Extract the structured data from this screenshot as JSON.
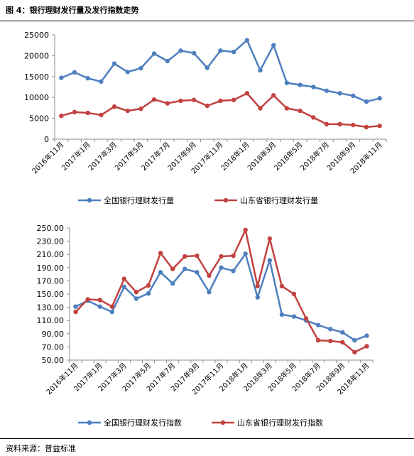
{
  "figure_title": "图 4：银行理财发行量及发行指数走势",
  "source": "资料来源：普益标准",
  "colors": {
    "national": "#4e7fbf",
    "shandong": "#c1423f",
    "axis": "#8c8c8c"
  },
  "chart_data": [
    {
      "type": "line",
      "categories": [
        "2016年11月",
        "2016年12月",
        "2017年1月",
        "2017年2月",
        "2017年3月",
        "2017年4月",
        "2017年5月",
        "2017年6月",
        "2017年7月",
        "2017年8月",
        "2017年9月",
        "2017年10月",
        "2017年11月",
        "2017年12月",
        "2018年1月",
        "2018年2月",
        "2018年3月",
        "2018年4月",
        "2018年5月",
        "2018年6月",
        "2018年7月",
        "2018年8月",
        "2018年9月",
        "2018年10月",
        "2018年11月"
      ],
      "tick_labels": [
        "2016年11月",
        "2017年1月",
        "2017年3月",
        "2017年5月",
        "2017年7月",
        "2017年9月",
        "2017年11月",
        "2018年1月",
        "2018年3月",
        "2018年5月",
        "2018年7月",
        "2018年9月",
        "2018年11月"
      ],
      "y_ticks": [
        "0",
        "5000",
        "10000",
        "15000",
        "20000",
        "25000"
      ],
      "ylim": [
        0,
        25000
      ],
      "series": [
        {
          "name": "全国银行理财发行量",
          "values": [
            14700,
            16000,
            14600,
            13800,
            18100,
            16100,
            17000,
            20500,
            18700,
            21200,
            20600,
            17100,
            21200,
            20900,
            23700,
            16500,
            22500,
            13500,
            13000,
            12500,
            11600,
            11000,
            10400,
            9000,
            9800
          ]
        },
        {
          "name": "山东省银行理财发行量",
          "values": [
            5600,
            6500,
            6300,
            5800,
            7800,
            6800,
            7300,
            9500,
            8600,
            9200,
            9400,
            8000,
            9200,
            9400,
            11000,
            7400,
            10500,
            7400,
            6800,
            5200,
            3600,
            3600,
            3400,
            2900,
            3200
          ]
        }
      ]
    },
    {
      "type": "line",
      "categories": [
        "2016年11月",
        "2016年12月",
        "2017年1月",
        "2017年2月",
        "2017年3月",
        "2017年4月",
        "2017年5月",
        "2017年6月",
        "2017年7月",
        "2017年8月",
        "2017年9月",
        "2017年10月",
        "2017年11月",
        "2017年12月",
        "2018年1月",
        "2018年2月",
        "2018年3月",
        "2018年4月",
        "2018年5月",
        "2018年6月",
        "2018年7月",
        "2018年8月",
        "2018年9月",
        "2018年10月",
        "2018年11月"
      ],
      "tick_labels": [
        "2016年11月",
        "2017年1月",
        "2017年3月",
        "2017年5月",
        "2017年7月",
        "2017年9月",
        "2017年11月",
        "2018年1月",
        "2018年3月",
        "2018年5月",
        "2018年7月",
        "2018年9月",
        "2018年11月"
      ],
      "y_ticks": [
        "50.00",
        "70.00",
        "90.00",
        "110.00",
        "130.00",
        "150.00",
        "170.00",
        "190.00",
        "210.00",
        "230.00",
        "250.00"
      ],
      "ylim": [
        50,
        250
      ],
      "series": [
        {
          "name": "全国银行理财发行指数",
          "values": [
            131,
            140,
            131,
            123,
            161,
            143,
            151,
            183,
            166,
            188,
            183,
            153,
            190,
            185,
            211,
            145,
            201,
            119,
            116,
            110,
            103,
            97,
            92,
            80,
            87
          ]
        },
        {
          "name": "山东省银行理财发行指数",
          "values": [
            123,
            142,
            141,
            131,
            173,
            153,
            163,
            212,
            188,
            207,
            208,
            178,
            207,
            208,
            247,
            162,
            234,
            162,
            150,
            113,
            80,
            79,
            77,
            62,
            71
          ]
        }
      ]
    }
  ]
}
